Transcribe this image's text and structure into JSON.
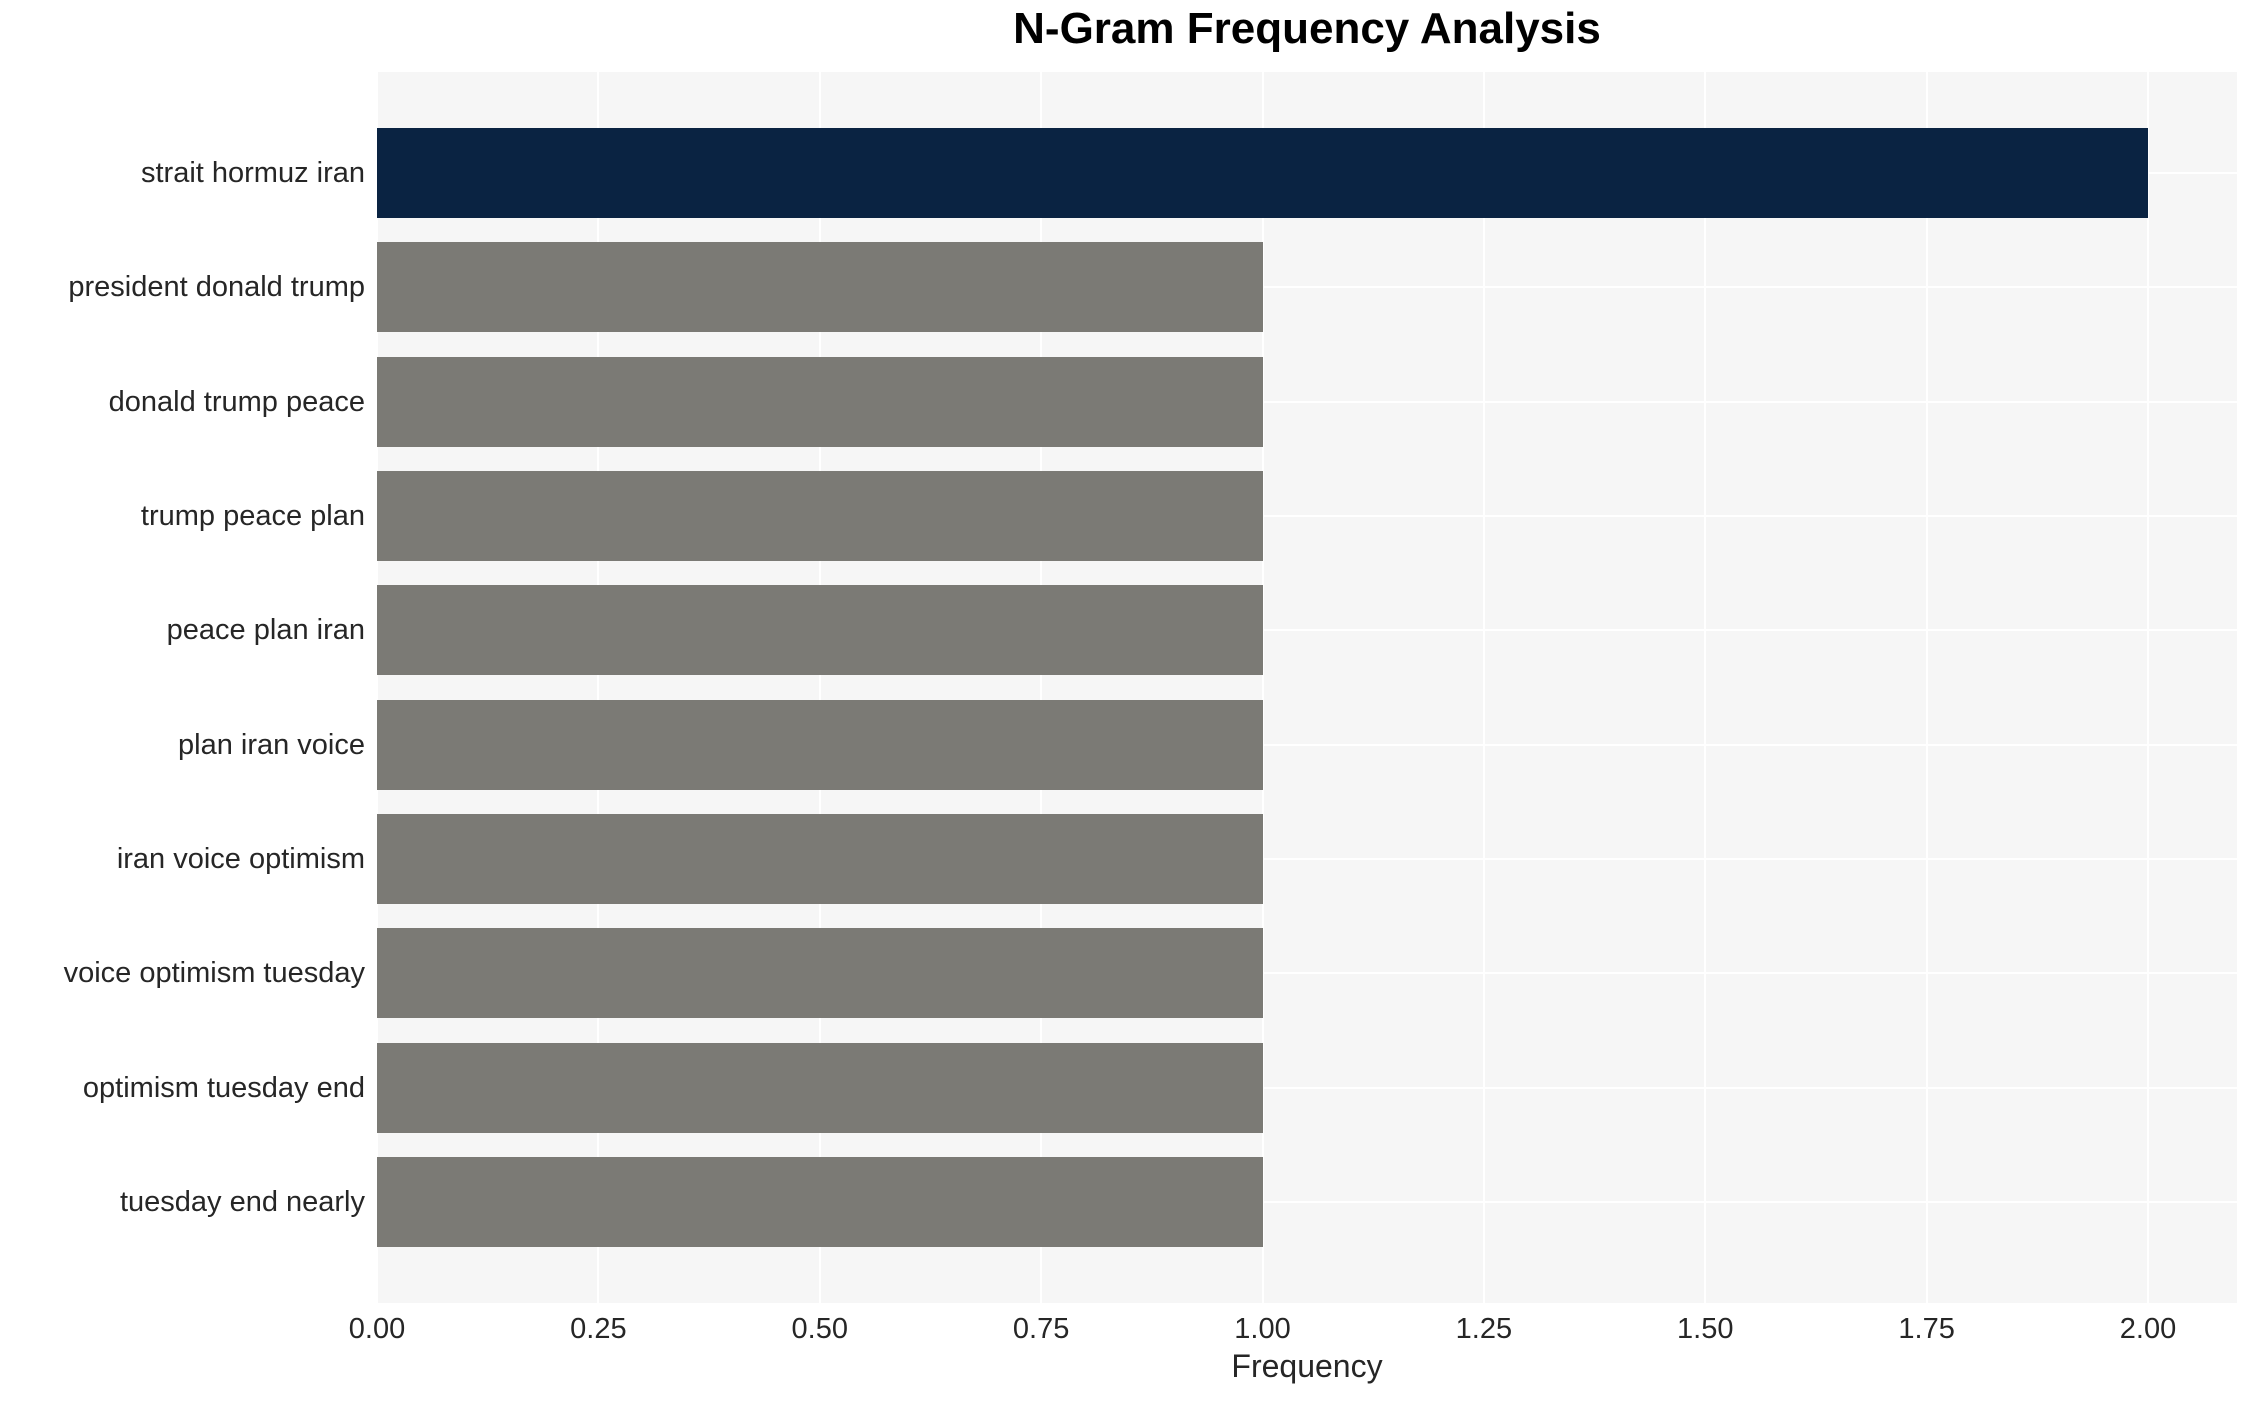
{
  "chart_data": {
    "type": "bar",
    "orientation": "horizontal",
    "title": "N-Gram Frequency Analysis",
    "categories": [
      "strait hormuz iran",
      "president donald trump",
      "donald trump peace",
      "trump peace plan",
      "peace plan iran",
      "plan iran voice",
      "iran voice optimism",
      "voice optimism tuesday",
      "optimism tuesday end",
      "tuesday end nearly"
    ],
    "values": [
      2,
      1,
      1,
      1,
      1,
      1,
      1,
      1,
      1,
      1
    ],
    "bar_colors": [
      "#0a2342",
      "#7b7a75",
      "#7b7a75",
      "#7b7a75",
      "#7b7a75",
      "#7b7a75",
      "#7b7a75",
      "#7b7a75",
      "#7b7a75",
      "#7b7a75"
    ],
    "xlabel": "Frequency",
    "ylabel": "",
    "xticks": [
      "0.00",
      "0.25",
      "0.50",
      "0.75",
      "1.00",
      "1.25",
      "1.50",
      "1.75",
      "2.00"
    ],
    "xtick_values": [
      0,
      0.25,
      0.5,
      0.75,
      1.0,
      1.25,
      1.5,
      1.75,
      2.0
    ],
    "xlim": [
      0,
      2.1
    ],
    "grid": true,
    "legend": false,
    "colors": {
      "highlight_bar": "#0a2342",
      "default_bar": "#7b7a75",
      "plot_background": "#f6f6f6",
      "gridline": "#ffffff",
      "tick_text": "#262626",
      "title_text": "#000000",
      "page_background": "#ffffff"
    }
  }
}
